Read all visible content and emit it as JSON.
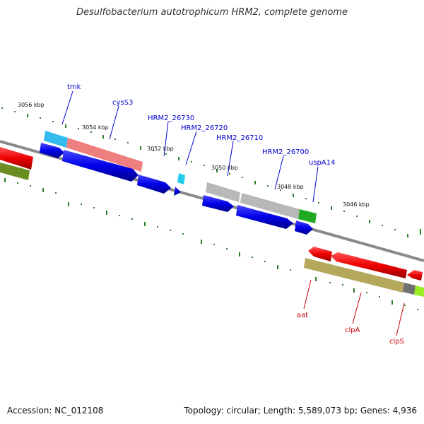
{
  "title": "Desulfobacterium autotrophicum HRM2, complete genome",
  "footer": {
    "accession": "Accession: NC_012108",
    "stats": "Topology: circular; Length: 5,589,073 bp; Genes: 4,936"
  },
  "ruler": [
    "3056 kbp",
    "3054 kbp",
    "3052 kbp",
    "3050 kbp",
    "3048 kbp",
    "3046 kbp"
  ],
  "genes_forward": [
    "tmk",
    "cysS3",
    "HRM2_26730",
    "HRM2_26720",
    "HRM2_26710",
    "HRM2_26700",
    "uspA14"
  ],
  "genes_reverse": [
    "aat",
    "clpA",
    "clpS"
  ],
  "colors": {
    "label_forward": "#0000cc",
    "label_reverse": "#cc0000",
    "tick": "#2e7d2e",
    "backbone": "#888888",
    "cds": "#0a0ae6"
  }
}
